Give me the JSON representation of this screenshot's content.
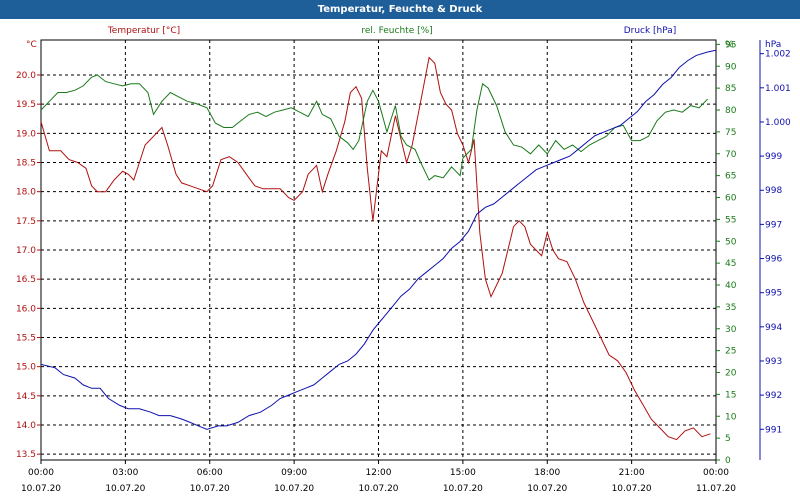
{
  "window": {
    "title": "Temperatur, Feuchte & Druck"
  },
  "colors": {
    "temperature": "#b01010",
    "humidity": "#1a7a1a",
    "pressure": "#1010b0",
    "title_bg": "#1f5f99",
    "grid": "#000000"
  },
  "chart_data": {
    "type": "line",
    "grid": true,
    "x_ticks": [
      {
        "time": "00:00",
        "date": "10.07.20"
      },
      {
        "time": "03:00",
        "date": "10.07.20"
      },
      {
        "time": "06:00",
        "date": "10.07.20"
      },
      {
        "time": "09:00",
        "date": "10.07.20"
      },
      {
        "time": "12:00",
        "date": "10.07.20"
      },
      {
        "time": "15:00",
        "date": "10.07.20"
      },
      {
        "time": "18:00",
        "date": "10.07.20"
      },
      {
        "time": "21:00",
        "date": "10.07.20"
      },
      {
        "time": "00:00",
        "date": "11.07.20"
      }
    ],
    "xlim": [
      0,
      24
    ],
    "axes": {
      "temperature": {
        "unit": "°C",
        "ylim": [
          13.4,
          20.6
        ],
        "ticks": [
          "13.5",
          "14.0",
          "14.5",
          "15.0",
          "15.5",
          "16.0",
          "16.5",
          "17.0",
          "17.5",
          "18.0",
          "18.5",
          "19.0",
          "19.5",
          "20.0"
        ]
      },
      "humidity": {
        "unit": "%",
        "ylim": [
          0,
          96
        ],
        "ticks": [
          "0",
          "5",
          "10",
          "15",
          "20",
          "25",
          "30",
          "35",
          "40",
          "45",
          "50",
          "55",
          "60",
          "65",
          "70",
          "75",
          "80",
          "85",
          "90",
          "95"
        ]
      },
      "pressure": {
        "unit": "hPa",
        "ylim": [
          990.1,
          1002.4
        ],
        "ticks": [
          "991",
          "992",
          "993",
          "994",
          "995",
          "996",
          "997",
          "998",
          "999",
          "1.000",
          "1.001",
          "1.002"
        ]
      }
    },
    "series": [
      {
        "name": "Temperatur [°C]",
        "axis": "temperature",
        "points": [
          [
            0,
            19.2
          ],
          [
            0.3,
            18.7
          ],
          [
            0.7,
            18.7
          ],
          [
            1.0,
            18.55
          ],
          [
            1.3,
            18.5
          ],
          [
            1.6,
            18.4
          ],
          [
            1.8,
            18.1
          ],
          [
            2.0,
            18.0
          ],
          [
            2.3,
            18.0
          ],
          [
            2.6,
            18.2
          ],
          [
            2.9,
            18.35
          ],
          [
            3.1,
            18.3
          ],
          [
            3.3,
            18.2
          ],
          [
            3.5,
            18.5
          ],
          [
            3.7,
            18.8
          ],
          [
            4.0,
            18.95
          ],
          [
            4.3,
            19.1
          ],
          [
            4.5,
            18.8
          ],
          [
            4.8,
            18.3
          ],
          [
            5.0,
            18.15
          ],
          [
            5.3,
            18.1
          ],
          [
            5.6,
            18.05
          ],
          [
            5.9,
            18.0
          ],
          [
            6.1,
            18.1
          ],
          [
            6.4,
            18.55
          ],
          [
            6.7,
            18.6
          ],
          [
            7.0,
            18.5
          ],
          [
            7.3,
            18.3
          ],
          [
            7.6,
            18.1
          ],
          [
            7.9,
            18.05
          ],
          [
            8.2,
            18.05
          ],
          [
            8.5,
            18.05
          ],
          [
            8.8,
            17.9
          ],
          [
            9.0,
            17.85
          ],
          [
            9.3,
            18.0
          ],
          [
            9.5,
            18.3
          ],
          [
            9.8,
            18.45
          ],
          [
            10.0,
            18.0
          ],
          [
            10.2,
            18.3
          ],
          [
            10.5,
            18.7
          ],
          [
            10.8,
            19.2
          ],
          [
            11.0,
            19.7
          ],
          [
            11.2,
            19.8
          ],
          [
            11.4,
            19.6
          ],
          [
            11.6,
            18.4
          ],
          [
            11.8,
            17.5
          ],
          [
            12.0,
            18.3
          ],
          [
            12.1,
            18.7
          ],
          [
            12.3,
            18.6
          ],
          [
            12.6,
            19.3
          ],
          [
            12.8,
            18.9
          ],
          [
            13.0,
            18.5
          ],
          [
            13.2,
            18.8
          ],
          [
            13.4,
            19.3
          ],
          [
            13.6,
            19.8
          ],
          [
            13.8,
            20.3
          ],
          [
            14.0,
            20.2
          ],
          [
            14.2,
            19.7
          ],
          [
            14.4,
            19.5
          ],
          [
            14.6,
            19.4
          ],
          [
            14.8,
            19.0
          ],
          [
            15.0,
            18.8
          ],
          [
            15.2,
            18.5
          ],
          [
            15.4,
            18.9
          ],
          [
            15.6,
            17.3
          ],
          [
            15.8,
            16.5
          ],
          [
            16.0,
            16.2
          ],
          [
            16.2,
            16.4
          ],
          [
            16.4,
            16.6
          ],
          [
            16.6,
            17.0
          ],
          [
            16.8,
            17.4
          ],
          [
            17.0,
            17.5
          ],
          [
            17.2,
            17.4
          ],
          [
            17.4,
            17.1
          ],
          [
            17.6,
            17.0
          ],
          [
            17.8,
            16.9
          ],
          [
            18.0,
            17.3
          ],
          [
            18.2,
            17.0
          ],
          [
            18.4,
            16.85
          ],
          [
            18.7,
            16.8
          ],
          [
            19.0,
            16.5
          ],
          [
            19.3,
            16.1
          ],
          [
            19.6,
            15.8
          ],
          [
            19.9,
            15.5
          ],
          [
            20.2,
            15.2
          ],
          [
            20.5,
            15.1
          ],
          [
            20.8,
            14.9
          ],
          [
            21.1,
            14.6
          ],
          [
            21.4,
            14.35
          ],
          [
            21.7,
            14.1
          ],
          [
            22.0,
            13.95
          ],
          [
            22.3,
            13.8
          ],
          [
            22.6,
            13.75
          ],
          [
            22.9,
            13.9
          ],
          [
            23.2,
            13.95
          ],
          [
            23.5,
            13.8
          ],
          [
            23.8,
            13.85
          ]
        ]
      },
      {
        "name": "rel. Feuchte [%]",
        "axis": "humidity",
        "points": [
          [
            0,
            80
          ],
          [
            0.3,
            82
          ],
          [
            0.6,
            84
          ],
          [
            0.9,
            84
          ],
          [
            1.2,
            84.5
          ],
          [
            1.5,
            85.5
          ],
          [
            1.8,
            87.5
          ],
          [
            2.0,
            88
          ],
          [
            2.3,
            86.5
          ],
          [
            2.6,
            86
          ],
          [
            2.9,
            85.5
          ],
          [
            3.2,
            86
          ],
          [
            3.5,
            86
          ],
          [
            3.8,
            84
          ],
          [
            4.0,
            79
          ],
          [
            4.3,
            82
          ],
          [
            4.6,
            84
          ],
          [
            4.9,
            83
          ],
          [
            5.2,
            82
          ],
          [
            5.5,
            81.5
          ],
          [
            5.9,
            80.5
          ],
          [
            6.2,
            77
          ],
          [
            6.5,
            76
          ],
          [
            6.8,
            76
          ],
          [
            7.1,
            77.5
          ],
          [
            7.4,
            79
          ],
          [
            7.7,
            79.5
          ],
          [
            8.0,
            78.5
          ],
          [
            8.3,
            79.5
          ],
          [
            8.6,
            80
          ],
          [
            8.9,
            80.5
          ],
          [
            9.2,
            79.5
          ],
          [
            9.5,
            78.5
          ],
          [
            9.8,
            82
          ],
          [
            10.0,
            79
          ],
          [
            10.3,
            78
          ],
          [
            10.6,
            74
          ],
          [
            10.9,
            72.5
          ],
          [
            11.1,
            71
          ],
          [
            11.3,
            73
          ],
          [
            11.6,
            82
          ],
          [
            11.8,
            84.5
          ],
          [
            12.0,
            82
          ],
          [
            12.3,
            75
          ],
          [
            12.6,
            81
          ],
          [
            12.8,
            74
          ],
          [
            13.0,
            72
          ],
          [
            13.3,
            71
          ],
          [
            13.5,
            68
          ],
          [
            13.8,
            64
          ],
          [
            14.0,
            65
          ],
          [
            14.3,
            64.5
          ],
          [
            14.6,
            67
          ],
          [
            14.9,
            65
          ],
          [
            15.0,
            69
          ],
          [
            15.3,
            71
          ],
          [
            15.5,
            80
          ],
          [
            15.7,
            86
          ],
          [
            15.9,
            85
          ],
          [
            16.2,
            81
          ],
          [
            16.5,
            75
          ],
          [
            16.8,
            72
          ],
          [
            17.1,
            71.5
          ],
          [
            17.4,
            70
          ],
          [
            17.7,
            72
          ],
          [
            18.0,
            70
          ],
          [
            18.3,
            73
          ],
          [
            18.6,
            71
          ],
          [
            18.9,
            72
          ],
          [
            19.2,
            70.5
          ],
          [
            19.5,
            72
          ],
          [
            19.8,
            73
          ],
          [
            20.1,
            74
          ],
          [
            20.4,
            76
          ],
          [
            20.7,
            76.5
          ],
          [
            21.0,
            73
          ],
          [
            21.3,
            73
          ],
          [
            21.6,
            74
          ],
          [
            21.9,
            77.5
          ],
          [
            22.2,
            79.5
          ],
          [
            22.5,
            80
          ],
          [
            22.8,
            79.5
          ],
          [
            23.1,
            81
          ],
          [
            23.4,
            80.5
          ],
          [
            23.7,
            82.5
          ]
        ]
      },
      {
        "name": "Druck [hPa]",
        "axis": "pressure",
        "points": [
          [
            0,
            992.9
          ],
          [
            0.5,
            992.8
          ],
          [
            0.8,
            992.6
          ],
          [
            1.2,
            992.5
          ],
          [
            1.5,
            992.3
          ],
          [
            1.8,
            992.2
          ],
          [
            2.1,
            992.2
          ],
          [
            2.4,
            991.9
          ],
          [
            2.8,
            991.7
          ],
          [
            3.1,
            991.6
          ],
          [
            3.5,
            991.6
          ],
          [
            3.9,
            991.5
          ],
          [
            4.2,
            991.4
          ],
          [
            4.6,
            991.4
          ],
          [
            5.0,
            991.3
          ],
          [
            5.3,
            991.2
          ],
          [
            5.6,
            991.1
          ],
          [
            5.9,
            991.0
          ],
          [
            6.3,
            991.1
          ],
          [
            6.6,
            991.1
          ],
          [
            7.0,
            991.2
          ],
          [
            7.4,
            991.4
          ],
          [
            7.8,
            991.5
          ],
          [
            8.2,
            991.7
          ],
          [
            8.5,
            991.9
          ],
          [
            8.8,
            992.0
          ],
          [
            9.1,
            992.1
          ],
          [
            9.4,
            992.2
          ],
          [
            9.7,
            992.3
          ],
          [
            10.0,
            992.5
          ],
          [
            10.3,
            992.7
          ],
          [
            10.6,
            992.9
          ],
          [
            10.9,
            993.0
          ],
          [
            11.2,
            993.2
          ],
          [
            11.5,
            993.5
          ],
          [
            11.8,
            993.9
          ],
          [
            12.1,
            994.2
          ],
          [
            12.4,
            994.5
          ],
          [
            12.8,
            994.9
          ],
          [
            13.1,
            995.1
          ],
          [
            13.4,
            995.4
          ],
          [
            13.7,
            995.6
          ],
          [
            14.0,
            995.8
          ],
          [
            14.3,
            996.0
          ],
          [
            14.6,
            996.3
          ],
          [
            14.9,
            996.5
          ],
          [
            15.2,
            996.8
          ],
          [
            15.5,
            997.3
          ],
          [
            15.8,
            997.5
          ],
          [
            16.1,
            997.6
          ],
          [
            16.4,
            997.8
          ],
          [
            16.7,
            998.0
          ],
          [
            17.0,
            998.2
          ],
          [
            17.3,
            998.4
          ],
          [
            17.6,
            998.6
          ],
          [
            17.9,
            998.7
          ],
          [
            18.2,
            998.8
          ],
          [
            18.5,
            998.9
          ],
          [
            18.8,
            999.0
          ],
          [
            19.1,
            999.2
          ],
          [
            19.4,
            999.4
          ],
          [
            19.7,
            999.6
          ],
          [
            20.0,
            999.7
          ],
          [
            20.3,
            999.8
          ],
          [
            20.6,
            999.9
          ],
          [
            20.9,
            1000.1
          ],
          [
            21.2,
            1000.3
          ],
          [
            21.5,
            1000.6
          ],
          [
            21.8,
            1000.8
          ],
          [
            22.1,
            1001.1
          ],
          [
            22.4,
            1001.3
          ],
          [
            22.7,
            1001.6
          ],
          [
            23.0,
            1001.8
          ],
          [
            23.3,
            1001.95
          ],
          [
            23.7,
            1002.05
          ],
          [
            24.0,
            1002.1
          ]
        ]
      }
    ]
  }
}
